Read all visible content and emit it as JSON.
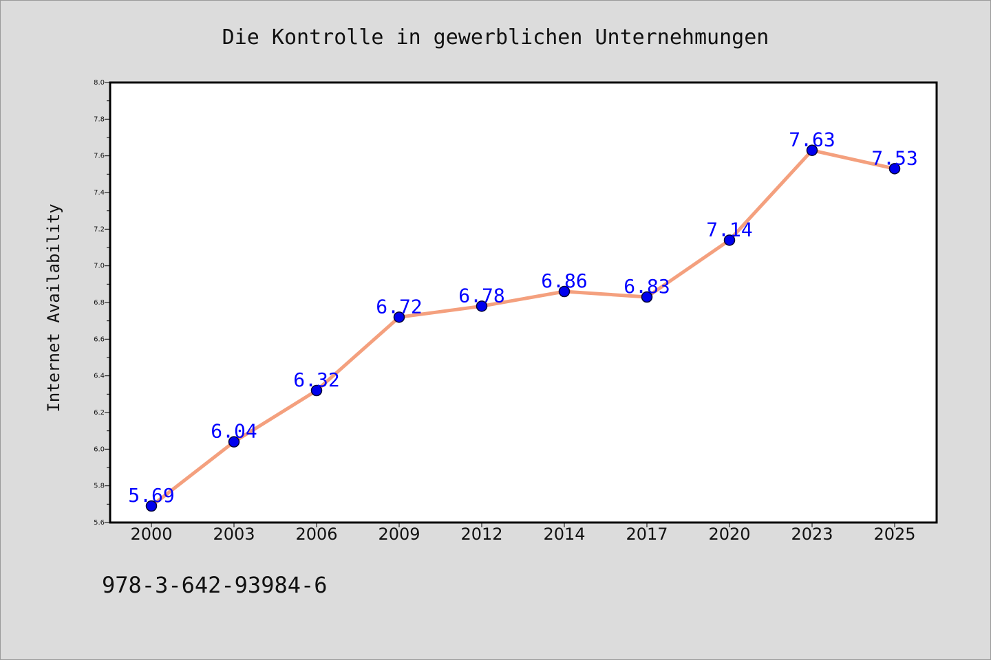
{
  "page": {
    "footer_code": "978-3-642-93984-6"
  },
  "chart_data": {
    "type": "line",
    "title": "Die Kontrolle in gewerblichen Unternehmungen",
    "xlabel": "",
    "ylabel": "Internet Availability",
    "categories": [
      "2000",
      "2003",
      "2006",
      "2009",
      "2012",
      "2014",
      "2017",
      "2020",
      "2023",
      "2025"
    ],
    "series": [
      {
        "values": [
          5.69,
          6.04,
          6.32,
          6.72,
          6.78,
          6.86,
          6.83,
          7.14,
          7.63,
          7.53
        ]
      }
    ],
    "data_labels": [
      "5.69",
      "6.04",
      "6.32",
      "6.72",
      "6.78",
      "6.86",
      "6.83",
      "7.14",
      "7.63",
      "7.53"
    ],
    "ylim": [
      5.6,
      8.0
    ],
    "y_major_ticks": [
      "5.6",
      "5.8",
      "6.0",
      "6.2",
      "6.4",
      "6.6",
      "6.8",
      "7.0",
      "7.2",
      "7.4",
      "7.6",
      "7.8",
      "8.0"
    ],
    "y_minor_step": 0.1,
    "grid": false,
    "legend": "none",
    "colors": {
      "line": "#f4a07e",
      "marker": "#0000ee",
      "marker_edge": "#000033",
      "data_label": "#0000ff",
      "plot_bg": "#ffffff",
      "page_bg": "#dcdcdc"
    }
  }
}
